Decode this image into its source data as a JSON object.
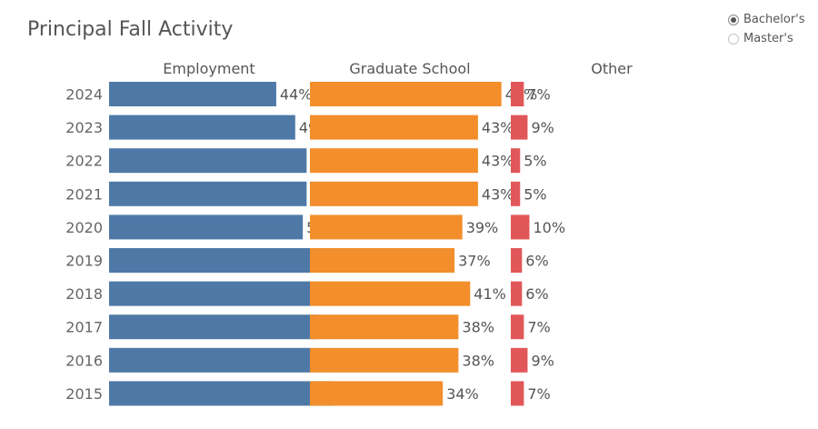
{
  "title": "Principal Fall Activity",
  "degree_filter": {
    "options": [
      {
        "label": "Bachelor's",
        "selected": true
      },
      {
        "label": "Master's",
        "selected": false
      }
    ]
  },
  "chart_data": {
    "type": "bar",
    "title": "Principal Fall Activity",
    "categories": [
      "2024",
      "2023",
      "2022",
      "2021",
      "2020",
      "2019",
      "2018",
      "2017",
      "2016",
      "2015"
    ],
    "series": [
      {
        "name": "Employment",
        "color": "#4e79a7",
        "values": [
          44,
          49,
          52,
          52,
          51,
          56,
          53,
          55,
          53,
          59
        ]
      },
      {
        "name": "Graduate School",
        "color": "#f28e2b",
        "values": [
          49,
          43,
          43,
          43,
          39,
          37,
          41,
          38,
          38,
          34
        ]
      },
      {
        "name": "Other",
        "color": "#e15759",
        "values": [
          7,
          9,
          5,
          5,
          10,
          6,
          6,
          7,
          9,
          7
        ]
      }
    ],
    "value_suffix": "%",
    "grid": false,
    "legend": "column headers"
  }
}
